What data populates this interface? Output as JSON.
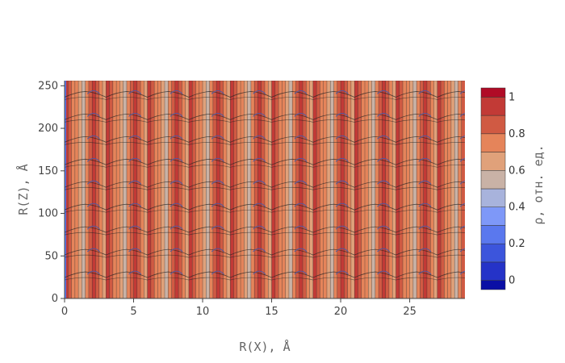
{
  "chart_data": {
    "type": "heatmap",
    "subtype": "contour",
    "title": "",
    "xlabel": "R(X), Å",
    "ylabel": "R(Z), Å",
    "xlim": [
      0,
      29
    ],
    "ylim": [
      0,
      256
    ],
    "x_ticks": [
      "0",
      "5",
      "10",
      "15",
      "20",
      "25"
    ],
    "x_tick_values": [
      0,
      5,
      10,
      15,
      20,
      25
    ],
    "y_ticks": [
      "0",
      "50",
      "100",
      "150",
      "200",
      "250"
    ],
    "y_tick_values": [
      0,
      50,
      100,
      150,
      200,
      250
    ],
    "x_period": 3.0,
    "z_period": 26.5,
    "colorbar": {
      "title": "ρ, отн. ед.",
      "ticks": [
        "0",
        "0.2",
        "0.4",
        "0.6",
        "0.8",
        "1"
      ],
      "tick_values": [
        0,
        0.2,
        0.4,
        0.6,
        0.8,
        1.0
      ],
      "range": [
        -0.05,
        1.05
      ],
      "levels": [
        0.0,
        0.1,
        0.2,
        0.3,
        0.4,
        0.5,
        0.6,
        0.7,
        0.8,
        0.9,
        1.0
      ],
      "colors": [
        "#0a0fa5",
        "#2533c8",
        "#3c55dc",
        "#5a78ee",
        "#7e98f8",
        "#a8b3dc",
        "#c9b2a6",
        "#e0a17a",
        "#e5845a",
        "#d05a43",
        "#c23a36",
        "#b00b26"
      ]
    },
    "column_profile": [
      0.95,
      0.88,
      0.78,
      0.7,
      0.62,
      0.55,
      0.7,
      0.82,
      0.92,
      0.86,
      0.74,
      0.64
    ]
  }
}
